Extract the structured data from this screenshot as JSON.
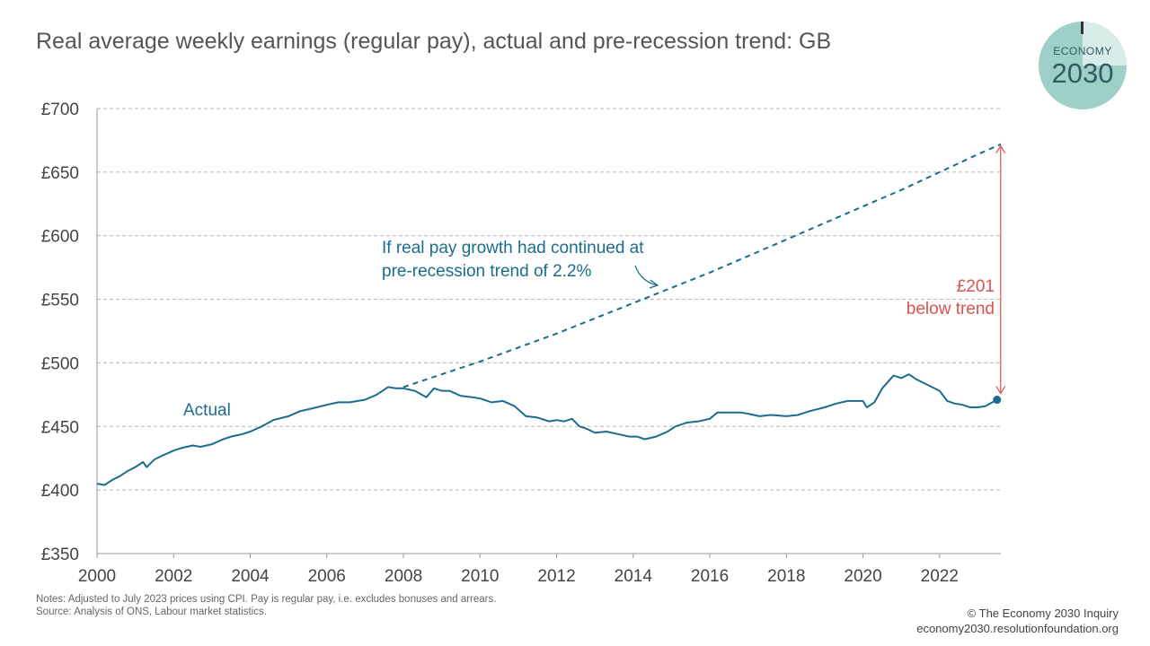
{
  "title": "Real average weekly earnings (regular pay), actual and pre-recession trend: GB",
  "logo": {
    "line1": "ECONOMY",
    "line2": "2030"
  },
  "annotations": {
    "trend_line1": "If real pay growth had continued at",
    "trend_line2": "pre-recession  trend of 2.2%",
    "actual": "Actual",
    "gap_line1": "£201",
    "gap_line2": "below trend"
  },
  "notes": {
    "line1": "Notes: Adjusted to July 2023 prices using CPI. Pay is regular pay, i.e. excludes bonuses and arrears.",
    "line2": "Source: Analysis of ONS, Labour market statistics."
  },
  "credit": {
    "line1": "© The Economy 2030 Inquiry",
    "line2": "economy2030.resolutionfoundation.org"
  },
  "colors": {
    "actual": "#1a6d8c",
    "trend": "#1a6d8c",
    "gap": "#d9534f",
    "grid": "#b5b5b5"
  },
  "chart_data": {
    "type": "line",
    "ylim": [
      350,
      700
    ],
    "xlim": [
      2000,
      2023.6
    ],
    "yticks": [
      350,
      400,
      450,
      500,
      550,
      600,
      650,
      700
    ],
    "ytick_labels": [
      "£350",
      "£400",
      "£450",
      "£500",
      "£550",
      "£600",
      "£650",
      "£700"
    ],
    "xticks": [
      2000,
      2002,
      2004,
      2006,
      2008,
      2010,
      2012,
      2014,
      2016,
      2018,
      2020,
      2022
    ],
    "xtick_labels": [
      "2000",
      "2002",
      "2004",
      "2006",
      "2008",
      "2010",
      "2012",
      "2014",
      "2016",
      "2018",
      "2020",
      "2022"
    ],
    "grid": true,
    "series": [
      {
        "name": "Actual",
        "style": "solid",
        "x": [
          2000,
          2000.2,
          2000.4,
          2000.6,
          2000.8,
          2001,
          2001.2,
          2001.3,
          2001.5,
          2001.7,
          2002,
          2002.2,
          2002.5,
          2002.7,
          2003,
          2003.3,
          2003.5,
          2003.8,
          2004,
          2004.3,
          2004.6,
          2005,
          2005.3,
          2005.6,
          2006,
          2006.3,
          2006.6,
          2007,
          2007.3,
          2007.6,
          2007.8,
          2008,
          2008.3,
          2008.6,
          2008.8,
          2009,
          2009.2,
          2009.5,
          2009.8,
          2010,
          2010.3,
          2010.6,
          2010.9,
          2011.2,
          2011.5,
          2011.8,
          2012,
          2012.2,
          2012.4,
          2012.6,
          2012.8,
          2013,
          2013.3,
          2013.6,
          2013.9,
          2014.1,
          2014.3,
          2014.6,
          2014.9,
          2015.1,
          2015.4,
          2015.7,
          2016,
          2016.2,
          2016.5,
          2016.8,
          2017,
          2017.3,
          2017.6,
          2018,
          2018.3,
          2018.6,
          2019,
          2019.3,
          2019.6,
          2020,
          2020.1,
          2020.3,
          2020.5,
          2020.8,
          2021,
          2021.2,
          2021.4,
          2021.6,
          2021.8,
          2022,
          2022.2,
          2022.4,
          2022.6,
          2022.8,
          2023,
          2023.2,
          2023.5
        ],
        "y": [
          405,
          404,
          408,
          411,
          415,
          418,
          422,
          418,
          424,
          427,
          431,
          433,
          435,
          434,
          436,
          440,
          442,
          444,
          446,
          450,
          455,
          458,
          462,
          464,
          467,
          469,
          469,
          471,
          475,
          481,
          480,
          480,
          478,
          473,
          480,
          478,
          478,
          474,
          473,
          472,
          469,
          470,
          466,
          458,
          457,
          454,
          455,
          454,
          456,
          450,
          448,
          445,
          446,
          444,
          442,
          442,
          440,
          442,
          446,
          450,
          453,
          454,
          456,
          461,
          461,
          461,
          460,
          458,
          459,
          458,
          459,
          462,
          465,
          468,
          470,
          470,
          465,
          469,
          480,
          490,
          488,
          491,
          487,
          484,
          481,
          478,
          470,
          468,
          467,
          465,
          465,
          466,
          471
        ]
      },
      {
        "name": "If real pay growth had continued at pre-recession  trend of 2.2%",
        "style": "dashed",
        "x": [
          2008,
          2009,
          2010,
          2011,
          2012,
          2013,
          2014,
          2015,
          2016,
          2017,
          2018,
          2019,
          2020,
          2021,
          2022,
          2023,
          2023.6
        ],
        "y": [
          481,
          491,
          501,
          512,
          523,
          535,
          547,
          559,
          571,
          584,
          597,
          610,
          623,
          636,
          650,
          664,
          672
        ]
      }
    ],
    "gap": {
      "x": 2023.5,
      "from": 471,
      "to": 672,
      "value": "£201"
    }
  }
}
